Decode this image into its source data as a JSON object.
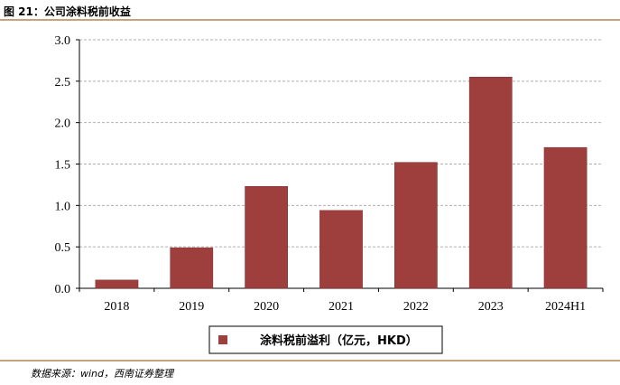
{
  "figure": {
    "title": "图 21：公司涂料税前收益",
    "source": "数据来源：wind，西南证券整理"
  },
  "colors": {
    "bar": "#9e3f3e",
    "bar_stroke": "#7a2d2d",
    "grid": "#b0b0b0",
    "axis": "#000000",
    "rule": "#c8a27a"
  },
  "chart_data": {
    "type": "bar",
    "title": "",
    "xlabel": "",
    "ylabel": "",
    "categories": [
      "2018",
      "2019",
      "2020",
      "2021",
      "2022",
      "2023",
      "2024H1"
    ],
    "series": [
      {
        "name": "涂料税前溢利（亿元，HKD）",
        "values": [
          0.1,
          0.49,
          1.23,
          0.94,
          1.52,
          2.55,
          1.7
        ]
      }
    ],
    "ylim": [
      0,
      3.0
    ],
    "yticks": [
      "0.0",
      "0.5",
      "1.0",
      "1.5",
      "2.0",
      "2.5",
      "3.0"
    ],
    "grid": true,
    "legend_position": "bottom-center"
  }
}
